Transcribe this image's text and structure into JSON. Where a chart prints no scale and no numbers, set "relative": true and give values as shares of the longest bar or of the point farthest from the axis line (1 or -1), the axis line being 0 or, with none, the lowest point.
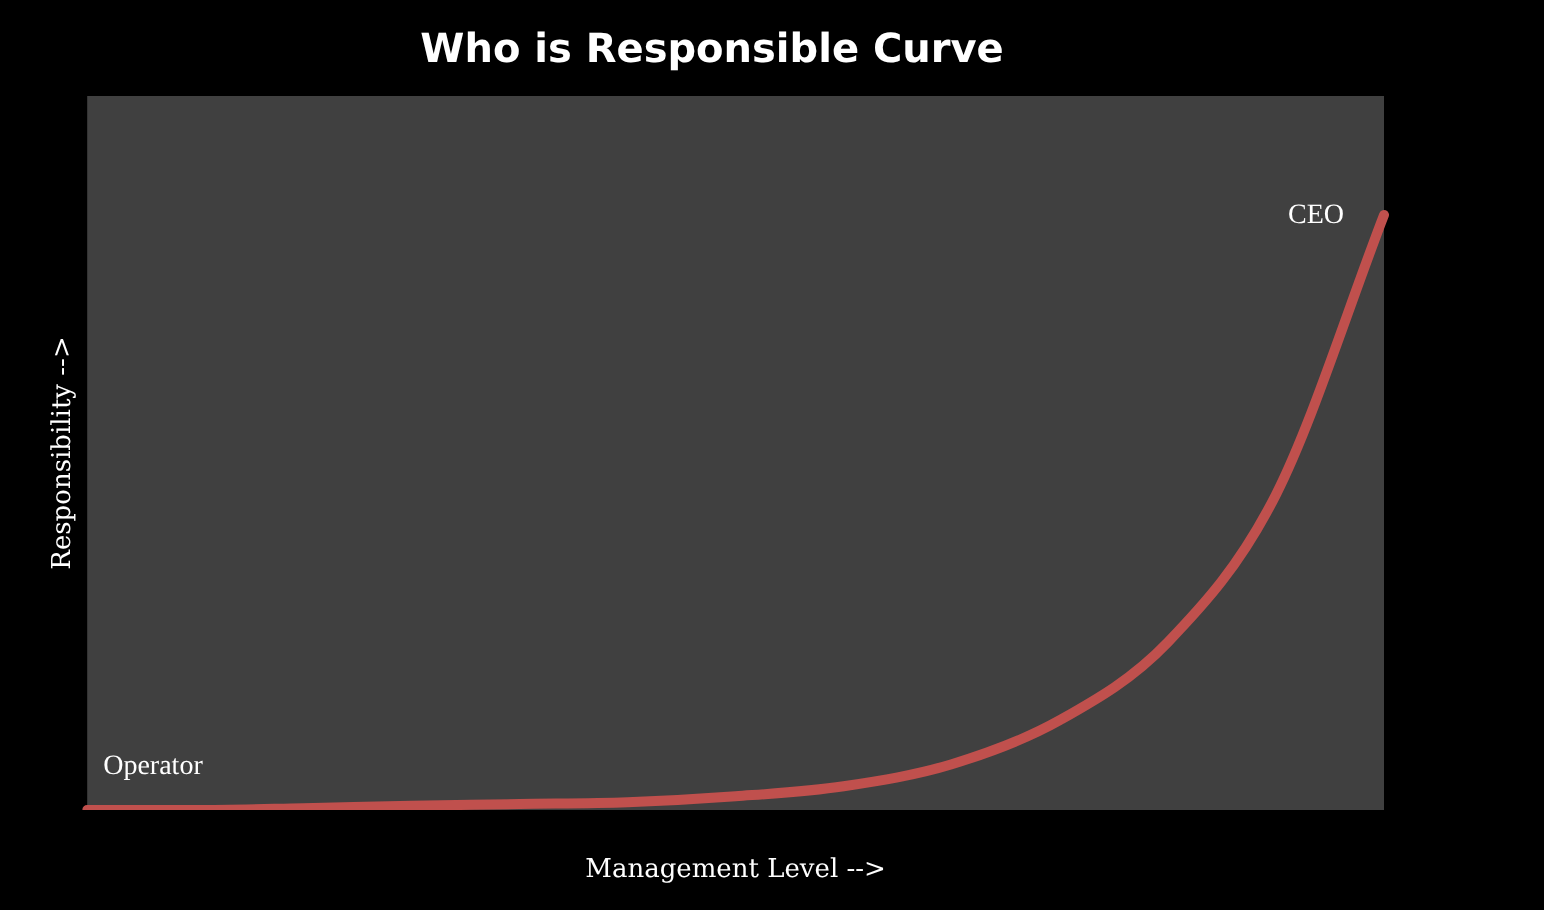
{
  "chart_data": {
    "type": "line",
    "title": "Who is Responsible Curve",
    "xlabel": "Management Level -->",
    "ylabel": "Responsibility -->",
    "relative": true,
    "categories": [
      null,
      null,
      null,
      null,
      null,
      null,
      null,
      null,
      null,
      null,
      null,
      null,
      null
    ],
    "series": [
      {
        "color": "#c0504d",
        "values": [
          0,
          0,
          0.003,
          0.007,
          0.01,
          0.013,
          0.023,
          0.04,
          0.077,
          0.151,
          0.282,
          0.53,
          1
        ]
      }
    ],
    "annotations": [
      "Operator",
      "CEO"
    ],
    "grid": false,
    "legend": false,
    "marker": "none"
  }
}
